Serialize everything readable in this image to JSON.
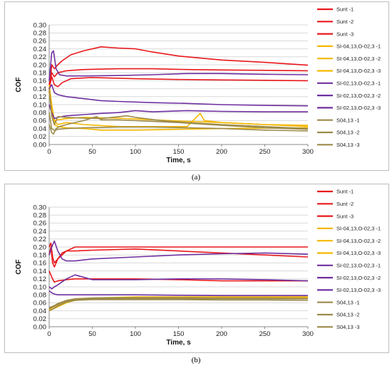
{
  "captions": [
    "(a)",
    "(b)"
  ],
  "chart_data": [
    {
      "type": "line",
      "xlabel": "Time, s",
      "ylabel": "COF",
      "xlim": [
        0,
        300
      ],
      "ylim": [
        0,
        0.3
      ],
      "x_ticks": [
        "0",
        "50",
        "100",
        "150",
        "200",
        "250",
        "300"
      ],
      "y_ticks": [
        "0.00",
        "0.02",
        "0.04",
        "0.06",
        "0.08",
        "0.10",
        "0.12",
        "0.14",
        "0.16",
        "0.18",
        "0.20",
        "0.22",
        "0.24",
        "0.26",
        "0.28",
        "0.30"
      ],
      "legend_position": "right",
      "series": [
        {
          "name": "Sunt -1",
          "color": "#e8181c",
          "x": [
            0,
            3,
            6,
            10,
            15,
            25,
            40,
            60,
            80,
            100,
            120,
            150,
            200,
            250,
            300
          ],
          "y": [
            0.13,
            0.2,
            0.19,
            0.2,
            0.21,
            0.225,
            0.235,
            0.245,
            0.242,
            0.24,
            0.232,
            0.222,
            0.212,
            0.206,
            0.199
          ]
        },
        {
          "name": "Sunt -2",
          "color": "#e8181c",
          "x": [
            0,
            3,
            6,
            10,
            15,
            25,
            50,
            100,
            150,
            200,
            250,
            300
          ],
          "y": [
            0.14,
            0.17,
            0.15,
            0.145,
            0.155,
            0.165,
            0.168,
            0.165,
            0.163,
            0.162,
            0.161,
            0.16
          ]
        },
        {
          "name": "Sunt -3",
          "color": "#e8181c",
          "x": [
            0,
            3,
            6,
            10,
            20,
            40,
            80,
            120,
            160,
            200,
            250,
            300
          ],
          "y": [
            0.15,
            0.18,
            0.17,
            0.18,
            0.185,
            0.188,
            0.19,
            0.19,
            0.188,
            0.187,
            0.186,
            0.185
          ]
        },
        {
          "name": "SI-04,13,O-02,3 -1",
          "color": "#f5b800",
          "x": [
            0,
            3,
            6,
            10,
            20,
            40,
            80,
            120,
            160,
            175,
            180,
            200,
            250,
            300
          ],
          "y": [
            0.15,
            0.1,
            0.06,
            0.05,
            0.055,
            0.05,
            0.045,
            0.045,
            0.045,
            0.078,
            0.06,
            0.055,
            0.05,
            0.045
          ]
        },
        {
          "name": "SI-04,13,O-02,3 -2",
          "color": "#f5b800",
          "x": [
            0,
            3,
            6,
            10,
            20,
            40,
            60,
            100,
            150,
            200,
            250,
            300
          ],
          "y": [
            0.14,
            0.09,
            0.05,
            0.045,
            0.042,
            0.04,
            0.036,
            0.036,
            0.038,
            0.04,
            0.041,
            0.042
          ]
        },
        {
          "name": "SI-04,13,O-02,3 -3",
          "color": "#f5b800",
          "x": [
            0,
            3,
            6,
            10,
            20,
            40,
            80,
            120,
            160,
            200,
            250,
            300
          ],
          "y": [
            0.13,
            0.08,
            0.06,
            0.062,
            0.065,
            0.068,
            0.066,
            0.062,
            0.058,
            0.055,
            0.05,
            0.048
          ]
        },
        {
          "name": "SI-02,13,O-02,3 -1",
          "color": "#7030a0",
          "x": [
            0,
            3,
            5,
            8,
            12,
            20,
            40,
            80,
            120,
            160,
            200,
            250,
            300
          ],
          "y": [
            0.16,
            0.23,
            0.235,
            0.19,
            0.175,
            0.172,
            0.172,
            0.173,
            0.175,
            0.178,
            0.178,
            0.176,
            0.175
          ]
        },
        {
          "name": "SI-02,13,O-02,3 -2",
          "color": "#7030a0",
          "x": [
            0,
            3,
            6,
            10,
            20,
            40,
            60,
            80,
            120,
            160,
            200,
            250,
            300
          ],
          "y": [
            0.14,
            0.15,
            0.13,
            0.125,
            0.12,
            0.115,
            0.11,
            0.108,
            0.105,
            0.103,
            0.1,
            0.098,
            0.097
          ]
        },
        {
          "name": "SI-02,13,O-02,3 -3",
          "color": "#7030a0",
          "x": [
            0,
            3,
            6,
            10,
            20,
            40,
            60,
            80,
            100,
            120,
            160,
            200,
            250,
            300
          ],
          "y": [
            0.1,
            0.08,
            0.065,
            0.068,
            0.072,
            0.075,
            0.078,
            0.08,
            0.085,
            0.082,
            0.085,
            0.083,
            0.082,
            0.082
          ]
        },
        {
          "name": "S04,13 -1",
          "color": "#9c8a4a",
          "x": [
            0,
            3,
            6,
            10,
            20,
            40,
            60,
            90,
            100,
            130,
            160,
            200,
            250,
            300
          ],
          "y": [
            0.14,
            0.07,
            0.05,
            0.07,
            0.068,
            0.066,
            0.065,
            0.072,
            0.068,
            0.06,
            0.055,
            0.05,
            0.045,
            0.04
          ]
        },
        {
          "name": "S04,13 -2",
          "color": "#9c8a4a",
          "x": [
            0,
            3,
            5,
            8,
            12,
            20,
            40,
            55,
            60,
            80,
            100,
            150,
            200,
            250,
            300
          ],
          "y": [
            0.05,
            0.03,
            0.026,
            0.04,
            0.045,
            0.05,
            0.06,
            0.07,
            0.062,
            0.062,
            0.06,
            0.055,
            0.048,
            0.042,
            0.038
          ]
        },
        {
          "name": "S04,13 -3",
          "color": "#9c8a4a",
          "x": [
            0,
            3,
            6,
            10,
            20,
            40,
            80,
            120,
            160,
            200,
            250,
            300
          ],
          "y": [
            0.08,
            0.04,
            0.035,
            0.038,
            0.04,
            0.042,
            0.044,
            0.044,
            0.042,
            0.04,
            0.036,
            0.034
          ]
        }
      ]
    },
    {
      "type": "line",
      "xlabel": "Time, s",
      "ylabel": "COF",
      "xlim": [
        0,
        300
      ],
      "ylim": [
        0,
        0.3
      ],
      "x_ticks": [
        "0",
        "50",
        "100",
        "150",
        "200",
        "250",
        "300"
      ],
      "y_ticks": [
        "0.00",
        "0.02",
        "0.04",
        "0.06",
        "0.08",
        "0.10",
        "0.12",
        "0.14",
        "0.16",
        "0.18",
        "0.20",
        "0.22",
        "0.24",
        "0.26",
        "0.28",
        "0.30"
      ],
      "legend_position": "right",
      "series": [
        {
          "name": "Sunt -1",
          "color": "#e8181c",
          "x": [
            0,
            2,
            4,
            6,
            10,
            20,
            30,
            50,
            100,
            150,
            200,
            250,
            300
          ],
          "y": [
            0.18,
            0.2,
            0.16,
            0.15,
            0.17,
            0.19,
            0.2,
            0.2,
            0.2,
            0.2,
            0.2,
            0.2,
            0.2
          ]
        },
        {
          "name": "Sunt -2",
          "color": "#e8181c",
          "x": [
            0,
            2,
            4,
            6,
            10,
            15,
            20,
            30,
            50,
            100,
            150,
            200,
            250,
            300
          ],
          "y": [
            0.2,
            0.21,
            0.175,
            0.16,
            0.17,
            0.185,
            0.19,
            0.19,
            0.192,
            0.195,
            0.19,
            0.185,
            0.18,
            0.175
          ]
        },
        {
          "name": "Sunt -3",
          "color": "#e8181c",
          "x": [
            0,
            2,
            4,
            6,
            10,
            20,
            30,
            50,
            100,
            150,
            200,
            250,
            300
          ],
          "y": [
            0.14,
            0.13,
            0.12,
            0.112,
            0.115,
            0.118,
            0.12,
            0.12,
            0.12,
            0.118,
            0.115,
            0.115,
            0.115
          ]
        },
        {
          "name": "SI-04,13,O-02,3 -1",
          "color": "#f5b800",
          "x": [
            0,
            5,
            10,
            20,
            30,
            50,
            100,
            150,
            200,
            250,
            300
          ],
          "y": [
            0.045,
            0.05,
            0.055,
            0.065,
            0.07,
            0.072,
            0.075,
            0.075,
            0.075,
            0.075,
            0.075
          ]
        },
        {
          "name": "SI-04,13,O-02,3 -2",
          "color": "#f5b800",
          "x": [
            0,
            5,
            10,
            20,
            30,
            50,
            100,
            150,
            200,
            250,
            300
          ],
          "y": [
            0.04,
            0.045,
            0.05,
            0.06,
            0.066,
            0.07,
            0.072,
            0.072,
            0.073,
            0.073,
            0.073
          ]
        },
        {
          "name": "SI-04,13,O-02,3 -3",
          "color": "#f5b800",
          "x": [
            0,
            5,
            10,
            20,
            30,
            50,
            100,
            150,
            200,
            250,
            300
          ],
          "y": [
            0.042,
            0.046,
            0.052,
            0.062,
            0.068,
            0.07,
            0.07,
            0.071,
            0.072,
            0.072,
            0.072
          ]
        },
        {
          "name": "SI-02,13,O-02,3 -1",
          "color": "#7030a0",
          "x": [
            0,
            3,
            6,
            10,
            15,
            20,
            30,
            50,
            100,
            150,
            200,
            250,
            300
          ],
          "y": [
            0.18,
            0.2,
            0.215,
            0.19,
            0.17,
            0.165,
            0.165,
            0.17,
            0.175,
            0.18,
            0.183,
            0.185,
            0.182
          ]
        },
        {
          "name": "SI-02,13,O-02,3 -2",
          "color": "#7030a0",
          "x": [
            0,
            3,
            6,
            10,
            20,
            30,
            50,
            100,
            150,
            200,
            250,
            300
          ],
          "y": [
            0.1,
            0.095,
            0.1,
            0.105,
            0.12,
            0.13,
            0.118,
            0.118,
            0.12,
            0.12,
            0.118,
            0.115
          ]
        },
        {
          "name": "SI-02,13,O-02,3 -3",
          "color": "#7030a0",
          "x": [
            0,
            3,
            6,
            10,
            20,
            30,
            50,
            100,
            150,
            200,
            250,
            300
          ],
          "y": [
            0.09,
            0.085,
            0.082,
            0.08,
            0.08,
            0.08,
            0.08,
            0.08,
            0.079,
            0.078,
            0.078,
            0.078
          ]
        },
        {
          "name": "S04,13 -1",
          "color": "#9c8a4a",
          "x": [
            0,
            5,
            10,
            20,
            30,
            50,
            100,
            150,
            200,
            250,
            300
          ],
          "y": [
            0.045,
            0.05,
            0.056,
            0.065,
            0.068,
            0.07,
            0.07,
            0.07,
            0.07,
            0.07,
            0.07
          ]
        },
        {
          "name": "S04,13 -2",
          "color": "#9c8a4a",
          "x": [
            0,
            5,
            10,
            20,
            30,
            50,
            100,
            150,
            200,
            250,
            300
          ],
          "y": [
            0.04,
            0.045,
            0.052,
            0.062,
            0.066,
            0.068,
            0.068,
            0.068,
            0.067,
            0.067,
            0.066
          ]
        },
        {
          "name": "S04,13 -3",
          "color": "#9c8a4a",
          "x": [
            0,
            5,
            10,
            20,
            30,
            50,
            100,
            150,
            200,
            250,
            300
          ],
          "y": [
            0.048,
            0.052,
            0.058,
            0.066,
            0.07,
            0.072,
            0.073,
            0.073,
            0.072,
            0.072,
            0.071
          ]
        }
      ]
    }
  ]
}
